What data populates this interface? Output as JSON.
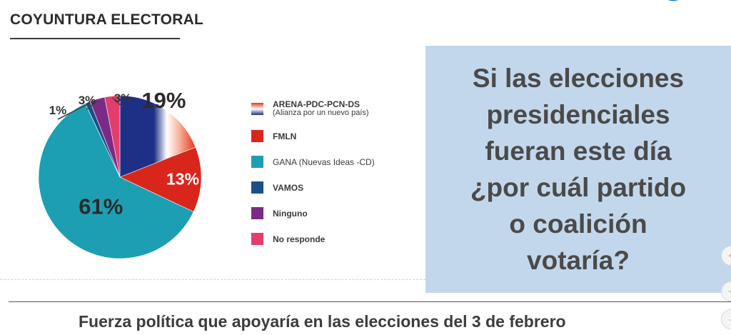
{
  "header": {
    "title": "COYUNTURA ELECTORAL"
  },
  "question": {
    "text": "Si las elecciones\npresidenciales\nfueran este día\n¿por cuál partido\no coalición\nvotaría?"
  },
  "caption": "Fuerza política que apoyaría en las elecciones del 3 de febrero",
  "colors": {
    "arena_red": "#e8341c",
    "arena_blue": "#1e2f86",
    "fmln": "#d9261c",
    "gana": "#1c9fb3",
    "vamos": "#1a4f8c",
    "ninguno": "#7b2a87",
    "no_responde": "#e33d6d",
    "question_bg": "#c3d7ec"
  },
  "side_controls": [
    "+",
    "−",
    "-"
  ],
  "chart_data": {
    "type": "pie",
    "title": "Fuerza política que apoyaría en las elecciones del 3 de febrero",
    "start_angle_deg": 0,
    "direction": "clockwise",
    "slices": [
      {
        "key": "arena",
        "label": "19%",
        "value": 19,
        "legend": "ARENA-PDC-PCN-DS",
        "legend_sub": "(Alianza por un nuevo país)",
        "color": "#e8341c"
      },
      {
        "key": "fmln",
        "label": "13%",
        "value": 13,
        "legend": "FMLN",
        "color": "#d9261c"
      },
      {
        "key": "gana",
        "label": "61%",
        "value": 61,
        "legend": "GANA (Nuevas Ideas -CD)",
        "color": "#1c9fb3"
      },
      {
        "key": "vamos",
        "label": "1%",
        "value": 1,
        "legend": "VAMOS",
        "color": "#1a4f8c"
      },
      {
        "key": "ninguno",
        "label": "3%",
        "value": 3,
        "legend": "Ninguno",
        "color": "#7b2a87"
      },
      {
        "key": "no_responde",
        "label": "3%",
        "value": 3,
        "legend": "No responde",
        "color": "#e33d6d"
      }
    ]
  }
}
